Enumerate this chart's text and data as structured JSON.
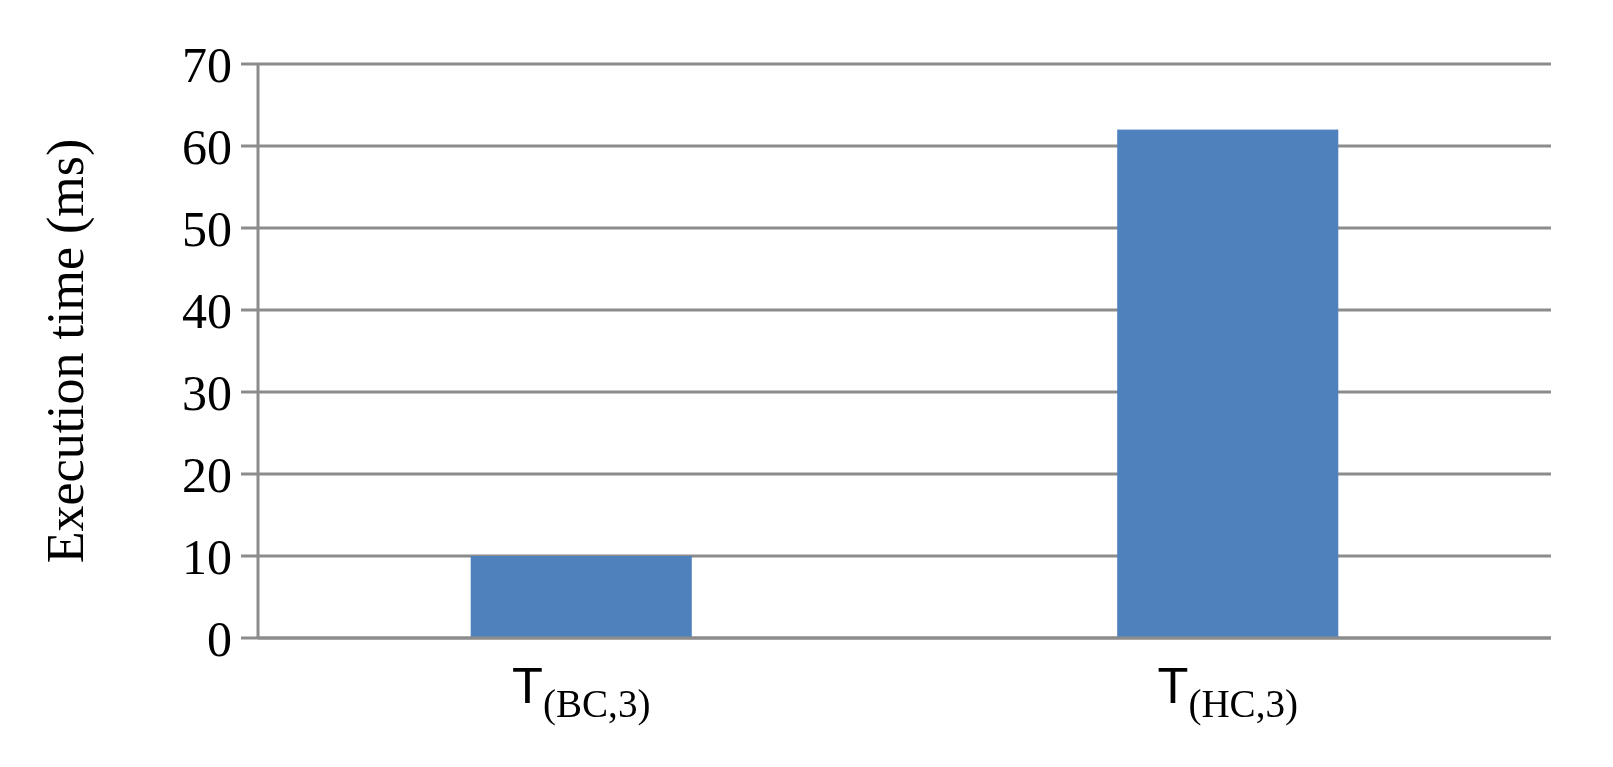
{
  "chart_data": {
    "type": "bar",
    "ylabel": "Execution time (ms)",
    "categories": [
      "T$_{(BC,3)}$",
      "T$_{(HC,3)}$"
    ],
    "values": [
      10,
      62
    ],
    "color": "#4f81bd",
    "ylim": [
      0,
      70
    ],
    "yticks": [
      0,
      10,
      20,
      30,
      40,
      50,
      60,
      70
    ],
    "grid": "y"
  }
}
